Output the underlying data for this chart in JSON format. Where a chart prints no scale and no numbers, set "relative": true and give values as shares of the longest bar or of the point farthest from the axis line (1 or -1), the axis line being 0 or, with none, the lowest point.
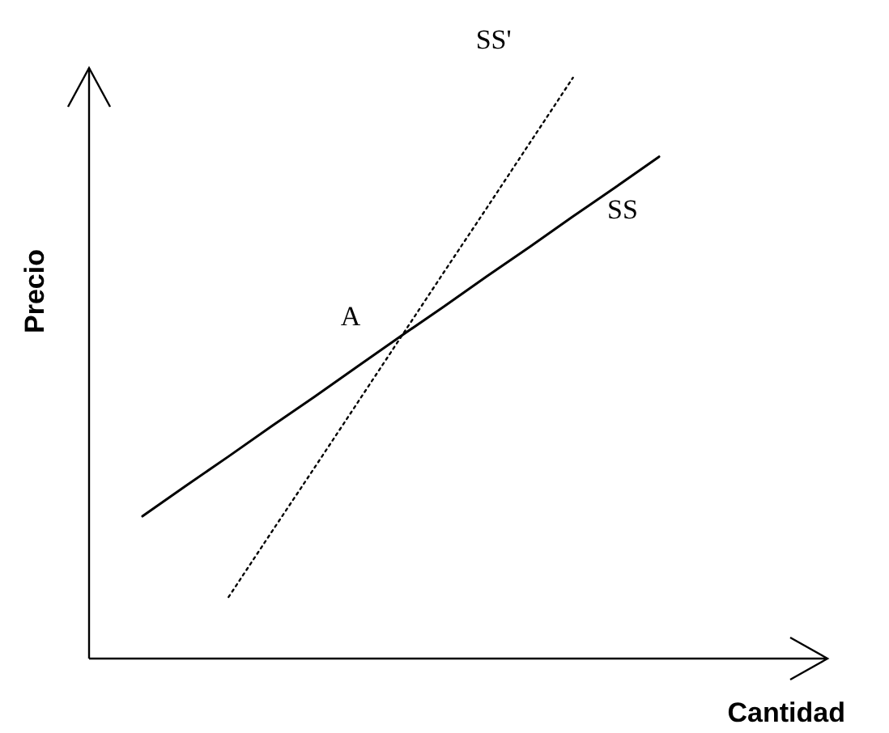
{
  "chart_data": {
    "type": "line",
    "relative": true,
    "xlabel": "Cantidad",
    "ylabel": "Precio",
    "categories": [
      null,
      null,
      null,
      null,
      null,
      null,
      null,
      null,
      null,
      null,
      null,
      null,
      null
    ],
    "marker": "none",
    "series": [
      {
        "name": "SS",
        "color": "#000000",
        "line_style": "solid",
        "values": [
          0.245,
          0.297,
          0.348,
          0.4,
          0.451,
          0.503,
          0.555,
          0.606,
          0.658,
          0.709,
          0.761,
          0.812,
          0.864
        ]
      },
      {
        "name": "SS'",
        "color": "#000000",
        "line_style": "dotted",
        "values": [
          null,
          null,
          0.106,
          0.218,
          0.329,
          0.441,
          0.553,
          0.665,
          0.776,
          0.888,
          1.0,
          null,
          null
        ]
      }
    ],
    "annotations": [
      "A"
    ]
  }
}
